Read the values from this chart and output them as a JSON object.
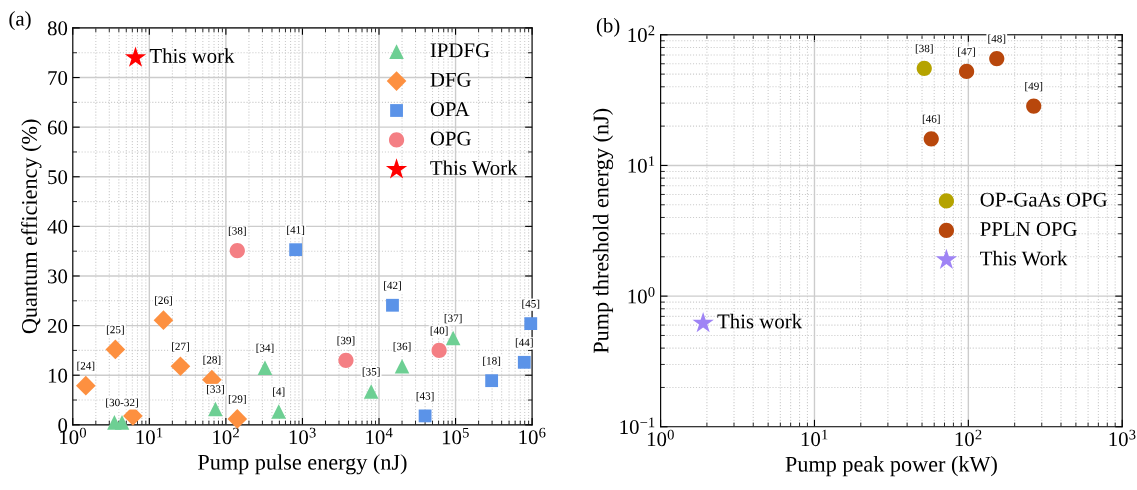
{
  "chart_data": [
    {
      "type": "scatter",
      "title": "(a)",
      "xlabel": "Pump pulse energy (nJ)",
      "ylabel": "Quantum efficiency (%)",
      "log": "x",
      "xlim": [
        1,
        1000000
      ],
      "xticks": [
        {
          "value": 1,
          "label": "10$^{0}$"
        },
        {
          "value": 10,
          "label": "10$^{1}$"
        },
        {
          "value": 100,
          "label": "10$^{2}$"
        },
        {
          "value": 1000,
          "label": "10$^{3}$"
        },
        {
          "value": 10000,
          "label": "10$^{4}$"
        },
        {
          "value": 100000,
          "label": "10$^{5}$"
        },
        {
          "value": 1000000,
          "label": "10$^{6}$"
        }
      ],
      "ylim": [
        0,
        80
      ],
      "yticks": [
        0,
        10,
        20,
        30,
        40,
        50,
        60,
        70,
        80
      ],
      "grid": true,
      "legend": "top right",
      "series": [
        {
          "name": "IPDFG",
          "color": "#6dcf93",
          "marker": "triangle",
          "x": [
            3.5,
            4.4,
            73,
            324,
            490,
            7900,
            20000,
            93000
          ],
          "values": [
            0.5,
            0.5,
            3.2,
            11.5,
            2.7,
            6.7,
            11.8,
            17.5
          ]
        },
        {
          "name": "DFG",
          "color": "#fd9040",
          "marker": "diamond",
          "x": [
            1.48,
            3.6,
            6.1,
            15.3,
            25.5,
            65.6,
            141
          ],
          "values": [
            7.9,
            15.2,
            1.8,
            21.1,
            11.8,
            9.1,
            1.2
          ]
        },
        {
          "name": "OPA",
          "color": "#5b93e8",
          "marker": "square",
          "x": [
            815,
            15000,
            40000,
            296000,
            790000,
            960000
          ],
          "values": [
            35.3,
            24.1,
            1.8,
            8.9,
            12.6,
            20.4
          ]
        },
        {
          "name": "OPG",
          "color": "#f47f84",
          "marker": "circle",
          "x": [
            141,
            3700,
            61000
          ],
          "values": [
            35.1,
            13.0,
            15.0
          ]
        },
        {
          "name": "This Work",
          "color": "#ff0000",
          "marker": "star",
          "x": [
            6.6
          ],
          "values": [
            74
          ]
        }
      ],
      "annotations": [
        {
          "text": "This work",
          "x": 6.6,
          "y": 74
        },
        {
          "text": "[24]",
          "x": 1.48,
          "y": 7.9
        },
        {
          "text": "[25]",
          "x": 3.6,
          "y": 15.2
        },
        {
          "text": "[30-32]",
          "x": 4.4,
          "y": 0.5
        },
        {
          "text": "[26]",
          "x": 15.3,
          "y": 21.1
        },
        {
          "text": "[27]",
          "x": 25.5,
          "y": 11.8
        },
        {
          "text": "[28]",
          "x": 65.6,
          "y": 9.1
        },
        {
          "text": "[33]",
          "x": 73,
          "y": 3.2
        },
        {
          "text": "[29]",
          "x": 141,
          "y": 1.2
        },
        {
          "text": "[38]",
          "x": 141,
          "y": 35.1
        },
        {
          "text": "[34]",
          "x": 324,
          "y": 11.5
        },
        {
          "text": "[4]",
          "x": 490,
          "y": 2.7
        },
        {
          "text": "[41]",
          "x": 815,
          "y": 35.3
        },
        {
          "text": "[39]",
          "x": 3700,
          "y": 13.0
        },
        {
          "text": "[35]",
          "x": 7900,
          "y": 6.7
        },
        {
          "text": "[42]",
          "x": 15000,
          "y": 24.1
        },
        {
          "text": "[36]",
          "x": 20000,
          "y": 11.8
        },
        {
          "text": "[43]",
          "x": 40000,
          "y": 1.8
        },
        {
          "text": "[40]",
          "x": 61000,
          "y": 15.0
        },
        {
          "text": "[37]",
          "x": 93000,
          "y": 17.5
        },
        {
          "text": "[18]",
          "x": 296000,
          "y": 8.9
        },
        {
          "text": "[44]",
          "x": 790000,
          "y": 12.6
        },
        {
          "text": "[45]",
          "x": 960000,
          "y": 20.4
        }
      ]
    },
    {
      "type": "scatter",
      "title": "(b)",
      "xlabel": "Pump peak power (kW)",
      "ylabel": "Pump threshold energy (nJ)",
      "log": "xy",
      "xlim": [
        1,
        1000
      ],
      "xticks": [
        {
          "value": 1,
          "label": "10$^{0}$"
        },
        {
          "value": 10,
          "label": "10$^{1}$"
        },
        {
          "value": 100,
          "label": "10$^{2}$"
        },
        {
          "value": 1000,
          "label": "10$^{3}$"
        }
      ],
      "ylim": [
        0.1,
        100
      ],
      "yticks": [
        {
          "value": 0.1,
          "label": "10$^{−1}$"
        },
        {
          "value": 1,
          "label": "10$^{0}$"
        },
        {
          "value": 10,
          "label": "10$^{1}$"
        },
        {
          "value": 100,
          "label": "10$^{2}$"
        }
      ],
      "grid": true,
      "legend": "right",
      "series": [
        {
          "name": "OP-GaAs OPG",
          "color": "#b5a300",
          "marker": "circle",
          "x": [
            51.7
          ],
          "values": [
            55.4
          ]
        },
        {
          "name": "PPLN OPG",
          "color": "#b8470c",
          "marker": "circle",
          "x": [
            57.4,
            97.4,
            153,
            266
          ],
          "values": [
            16.0,
            52.4,
            65.8,
            28.5
          ]
        },
        {
          "name": "This Work",
          "color": "#9f84f5",
          "marker": "star",
          "x": [
            1.89
          ],
          "values": [
            0.62
          ]
        }
      ],
      "annotations": [
        {
          "text": "[38]",
          "x": 51.7,
          "y": 55.4
        },
        {
          "text": "[46]",
          "x": 57.4,
          "y": 16.0
        },
        {
          "text": "[47]",
          "x": 97.4,
          "y": 52.4
        },
        {
          "text": "[48]",
          "x": 153,
          "y": 65.8
        },
        {
          "text": "[49]",
          "x": 266,
          "y": 28.5
        },
        {
          "text": "This work",
          "x": 1.89,
          "y": 0.62
        }
      ]
    }
  ]
}
